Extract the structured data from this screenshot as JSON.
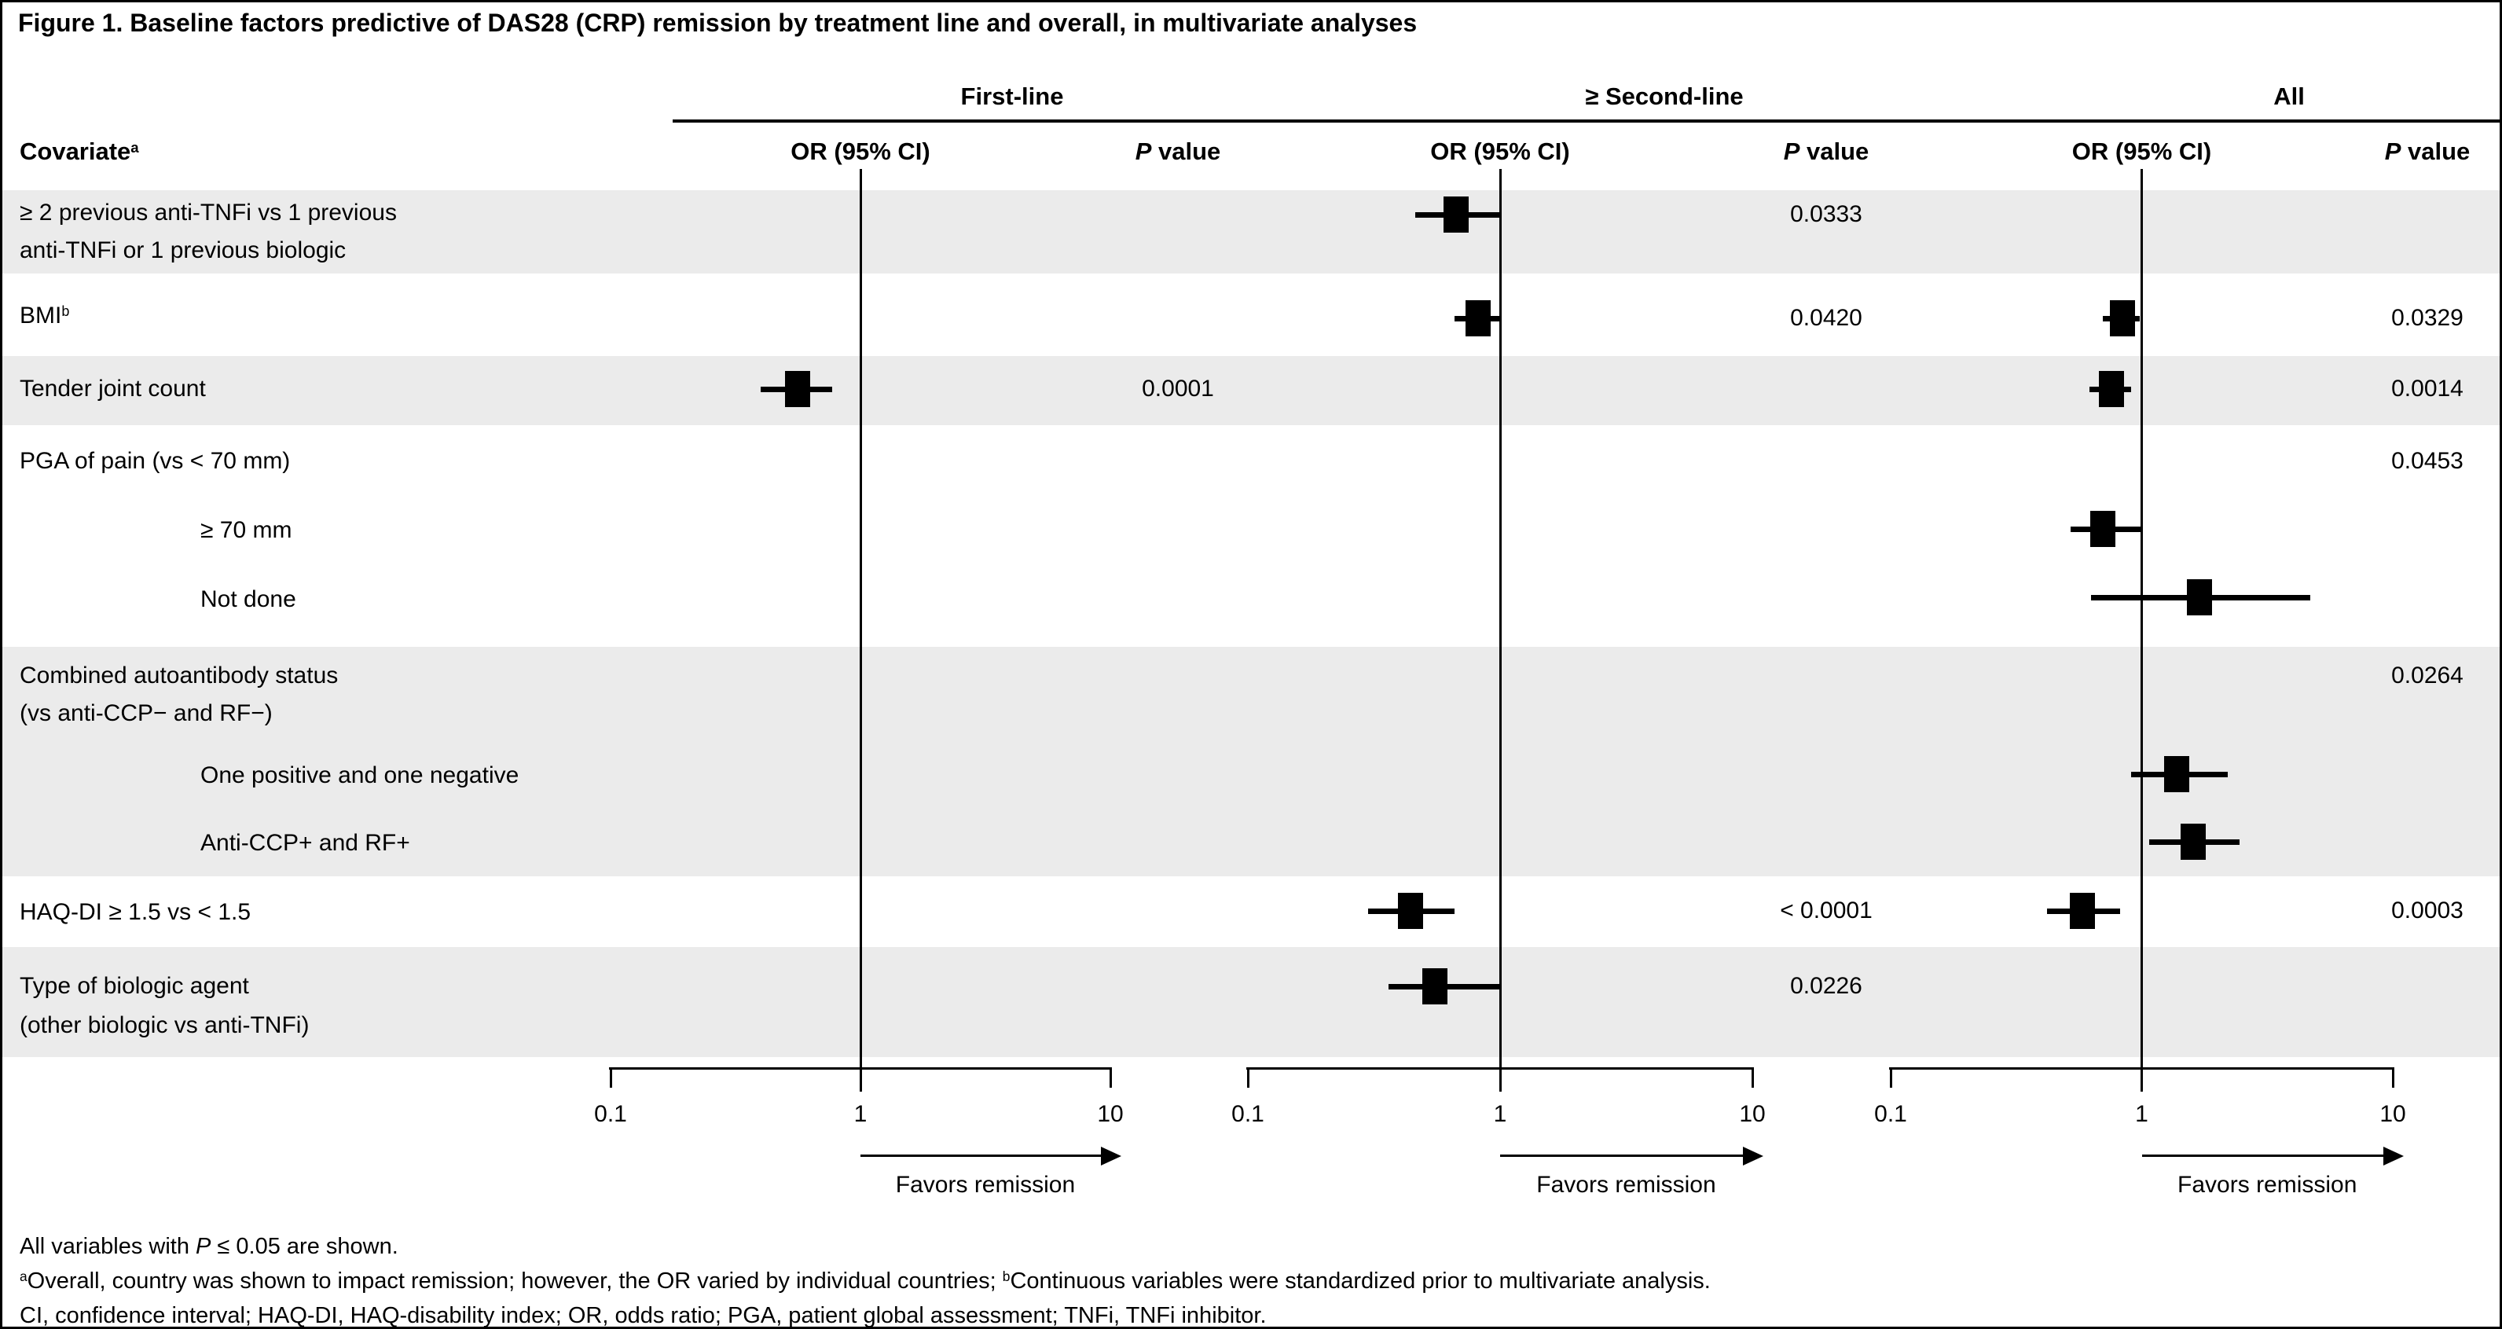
{
  "figure_title": "Figure 1. Baseline factors predictive of DAS28 (CRP) remission by treatment line and overall, in multivariate analyses",
  "table": {
    "covariate_header": {
      "text": "Covariate",
      "superscript": "a"
    },
    "or_column_label": "OR (95% CI)",
    "p_column_label_italic": "P",
    "p_column_label_rest": " value"
  },
  "chart_data": {
    "type": "forest",
    "panels": [
      {
        "name": "First-line"
      },
      {
        "name": "≥ Second-line"
      },
      {
        "name": "All"
      }
    ],
    "x_axis": {
      "scale": "log10",
      "min": 0.1,
      "max": 10,
      "tick_labels": [
        "0.1",
        "1",
        "10"
      ],
      "reference_line": 1
    },
    "favors_label": "Favors remission",
    "rows": [
      {
        "label_lines": [
          "≥ 2 previous anti-TNFi vs 1 previous",
          "anti-TNFi or 1 previous biologic"
        ],
        "indent": false,
        "shaded": true,
        "estimates": {
          "second_line": {
            "or": 0.67,
            "ci_low": 0.46,
            "ci_high": 1.0,
            "p": "0.0333"
          }
        }
      },
      {
        "label_lines": [
          "BMI"
        ],
        "label_superscript": "b",
        "indent": false,
        "shaded": false,
        "estimates": {
          "second_line": {
            "or": 0.82,
            "ci_low": 0.66,
            "ci_high": 1.0,
            "p": "0.0420"
          },
          "all": {
            "or": 0.84,
            "ci_low": 0.7,
            "ci_high": 0.98,
            "p": "0.0329"
          }
        }
      },
      {
        "label_lines": [
          "Tender joint count"
        ],
        "indent": false,
        "shaded": true,
        "estimates": {
          "first_line": {
            "or": 0.56,
            "ci_low": 0.4,
            "ci_high": 0.77,
            "p": "0.0001"
          },
          "all": {
            "or": 0.76,
            "ci_low": 0.62,
            "ci_high": 0.91,
            "p": "0.0014"
          }
        }
      },
      {
        "label_lines": [
          "PGA of pain (vs < 70 mm)"
        ],
        "indent": false,
        "shaded": false,
        "estimates": {
          "all": {
            "p": "0.0453"
          }
        }
      },
      {
        "label_lines": [
          "≥ 70 mm"
        ],
        "indent": true,
        "shaded": false,
        "estimates": {
          "all": {
            "or": 0.7,
            "ci_low": 0.52,
            "ci_high": 1.0
          }
        }
      },
      {
        "label_lines": [
          "Not done"
        ],
        "indent": true,
        "shaded": false,
        "estimates": {
          "all": {
            "or": 1.7,
            "ci_low": 0.63,
            "ci_high": 4.7
          }
        }
      },
      {
        "label_lines": [
          "Combined autoantibody status",
          "(vs anti-CCP− and RF−)"
        ],
        "indent": false,
        "shaded": true,
        "estimates": {
          "all": {
            "p": "0.0264"
          }
        }
      },
      {
        "label_lines": [
          "One positive and one negative"
        ],
        "indent": true,
        "shaded": true,
        "estimates": {
          "all": {
            "or": 1.38,
            "ci_low": 0.91,
            "ci_high": 2.2
          }
        }
      },
      {
        "label_lines": [
          "Anti-CCP+ and RF+"
        ],
        "indent": true,
        "shaded": true,
        "estimates": {
          "all": {
            "or": 1.6,
            "ci_low": 1.07,
            "ci_high": 2.45
          }
        }
      },
      {
        "label_lines": [
          "HAQ-DI ≥ 1.5 vs < 1.5"
        ],
        "indent": false,
        "shaded": false,
        "estimates": {
          "second_line": {
            "or": 0.44,
            "ci_low": 0.3,
            "ci_high": 0.66,
            "p": "< 0.0001"
          },
          "all": {
            "or": 0.58,
            "ci_low": 0.42,
            "ci_high": 0.82,
            "p": "0.0003"
          }
        }
      },
      {
        "label_lines": [
          "Type of biologic agent",
          "(other biologic vs anti-TNFi)"
        ],
        "indent": false,
        "shaded": true,
        "estimates": {
          "second_line": {
            "or": 0.55,
            "ci_low": 0.36,
            "ci_high": 1.0,
            "p": "0.0226"
          }
        }
      }
    ]
  },
  "footnotes": [
    {
      "segments": [
        {
          "text": "All variables with "
        },
        {
          "text": "P",
          "italic": true
        },
        {
          "text": " ≤ 0.05 are shown."
        }
      ]
    },
    {
      "segments": [
        {
          "text": "a",
          "superscript": true
        },
        {
          "text": "Overall, country was shown to impact remission; however, the OR varied by individual countries; "
        },
        {
          "text": "b",
          "superscript": true
        },
        {
          "text": "Continuous variables were standardized prior to multivariate analysis."
        }
      ]
    },
    {
      "segments": [
        {
          "text": "CI, confidence interval; HAQ-DI, HAQ-disability index; OR, odds ratio; PGA, patient global assessment; TNFi, TNFi inhibitor."
        }
      ]
    }
  ],
  "colors": {
    "row_shading": "#ebebeb",
    "ink": "#000000",
    "background": "#ffffff"
  }
}
